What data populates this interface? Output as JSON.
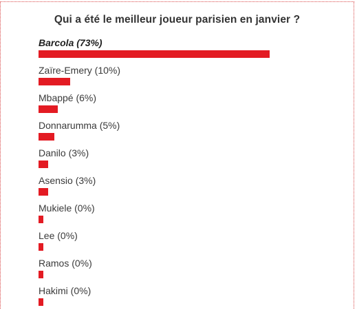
{
  "poll": {
    "title": "Qui a été le meilleur joueur parisien en janvier ?",
    "bar_color": "#e31b23",
    "options": [
      {
        "label": "Barcola (73%)",
        "percent": 73,
        "highlighted": true
      },
      {
        "label": "Zaïre-Emery (10%)",
        "percent": 10,
        "highlighted": false
      },
      {
        "label": "Mbappé (6%)",
        "percent": 6,
        "highlighted": false
      },
      {
        "label": "Donnarumma (5%)",
        "percent": 5,
        "highlighted": false
      },
      {
        "label": "Danilo (3%)",
        "percent": 3,
        "highlighted": false
      },
      {
        "label": "Asensio (3%)",
        "percent": 3,
        "highlighted": false
      },
      {
        "label": "Mukiele (0%)",
        "percent": 0,
        "highlighted": false
      },
      {
        "label": "Lee (0%)",
        "percent": 0,
        "highlighted": false
      },
      {
        "label": "Ramos (0%)",
        "percent": 0,
        "highlighted": false
      },
      {
        "label": "Hakimi (0%)",
        "percent": 0,
        "highlighted": false
      }
    ]
  }
}
